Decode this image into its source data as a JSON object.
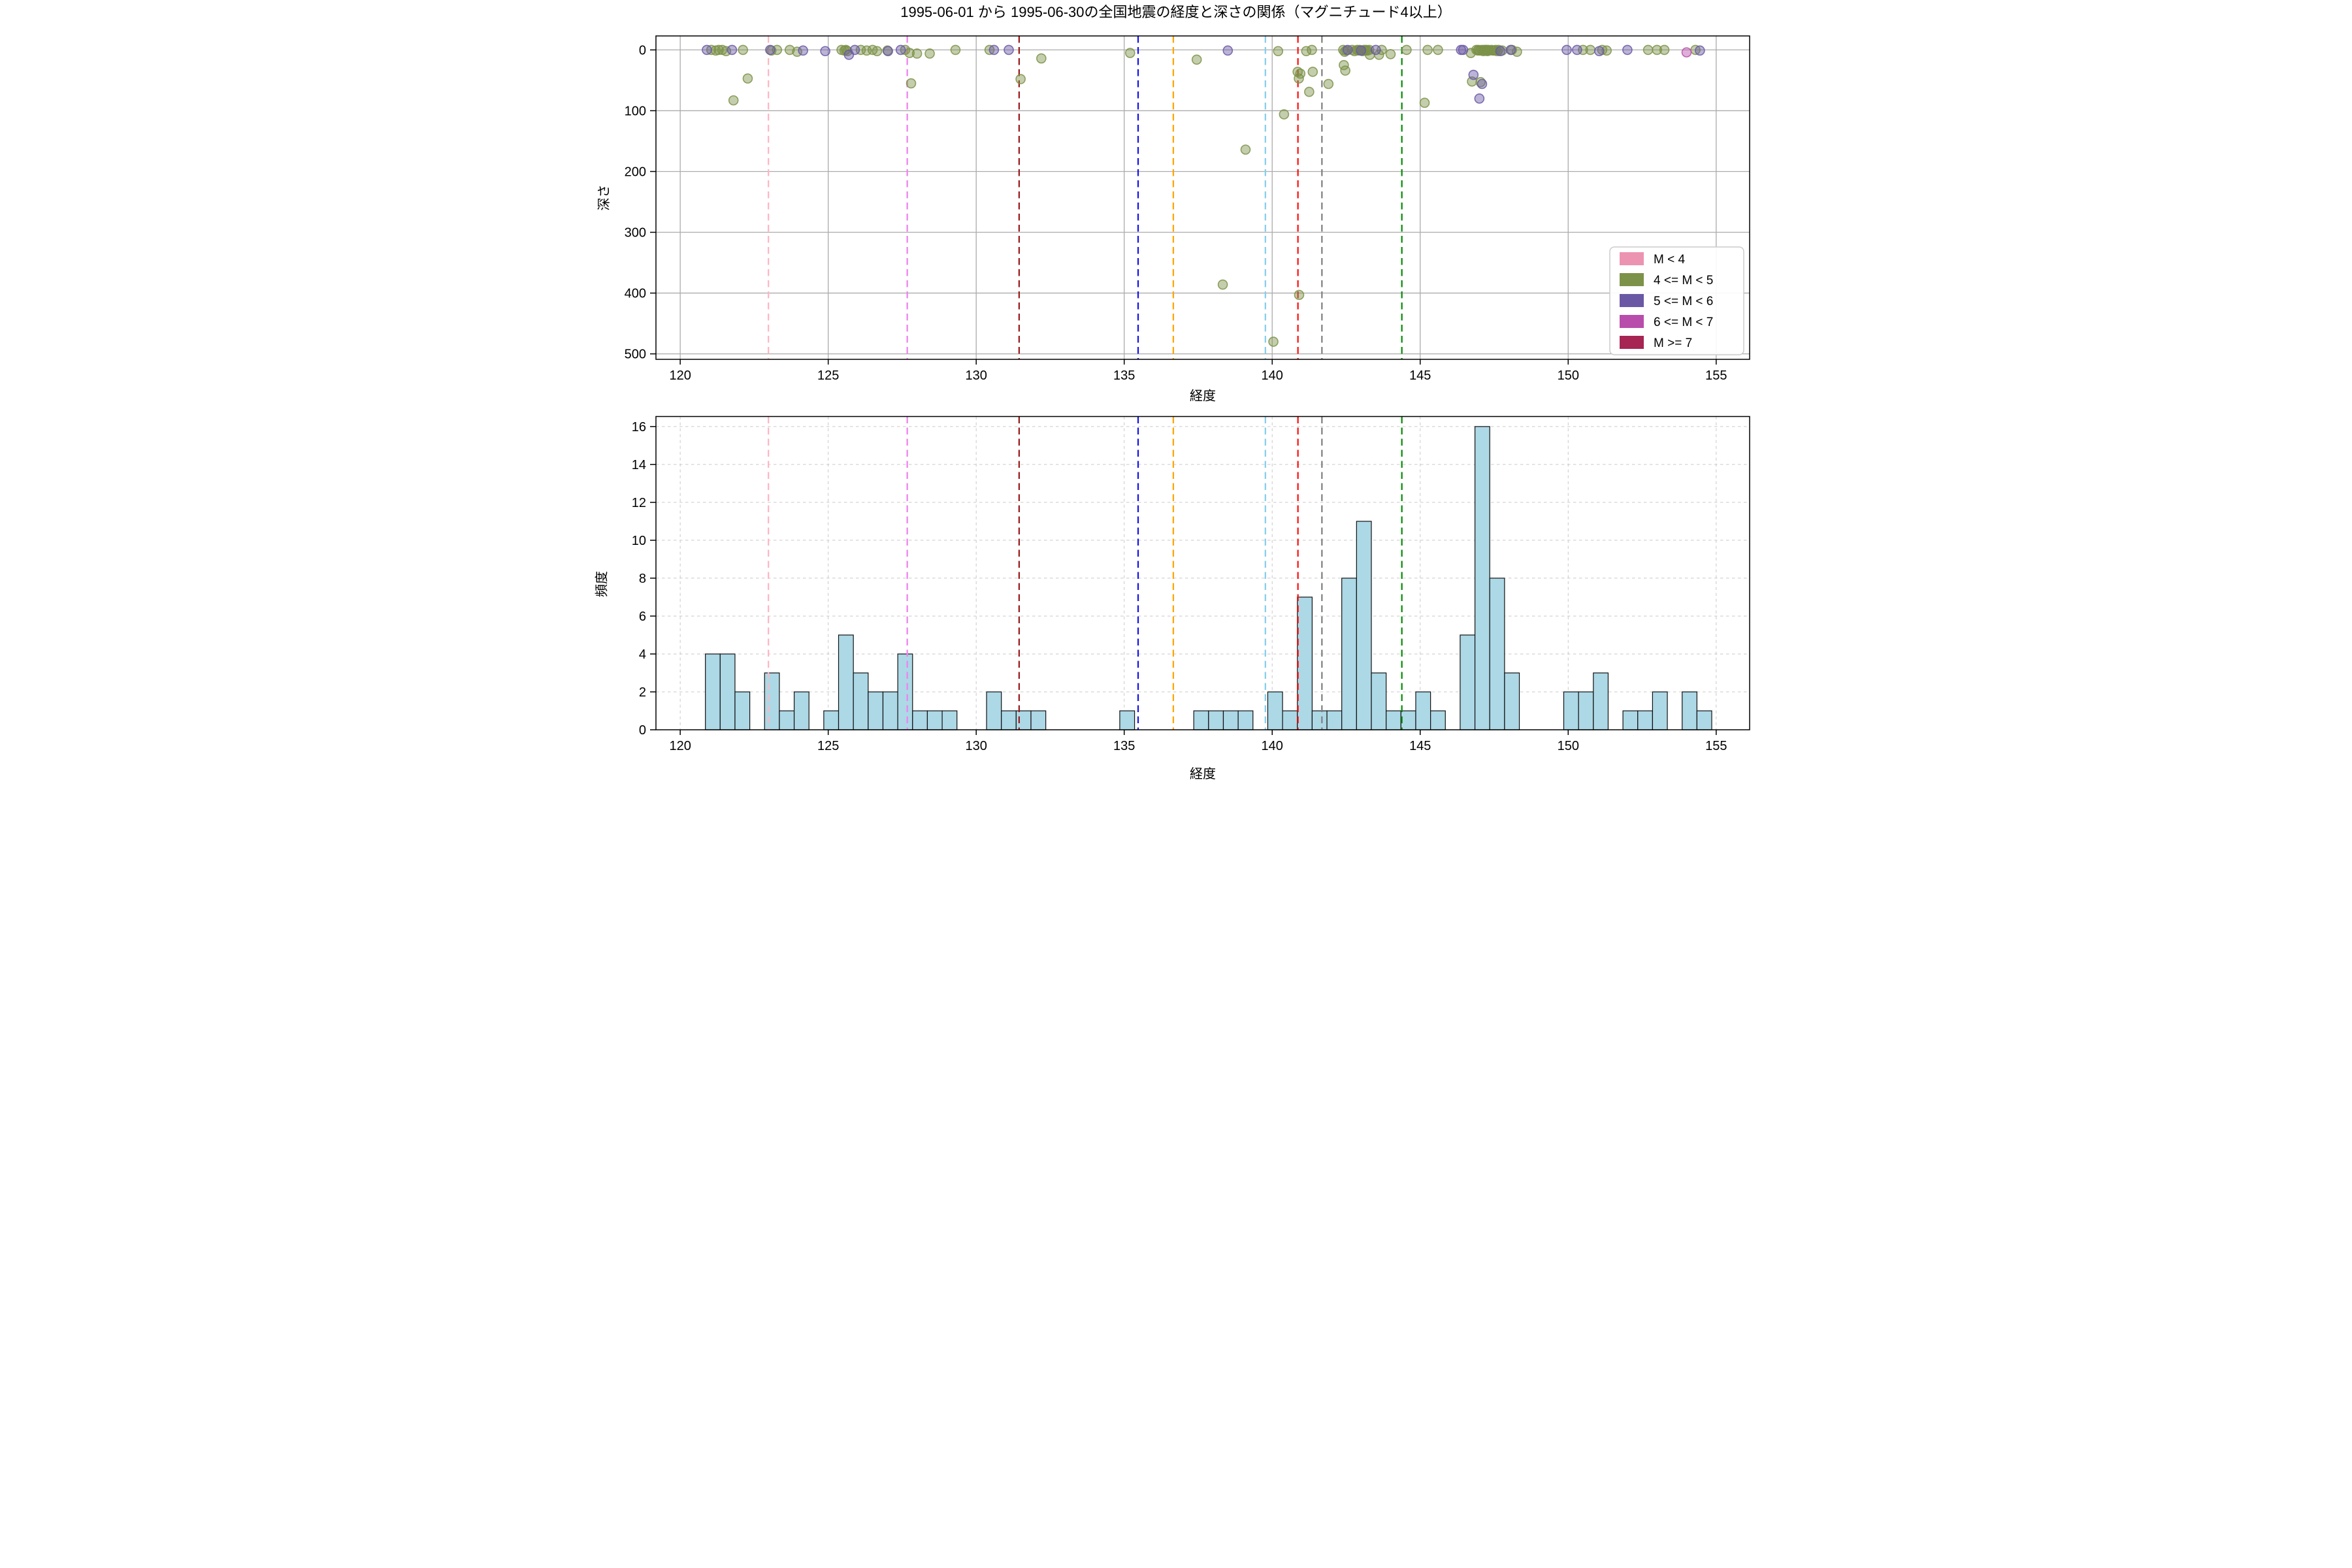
{
  "title": "1995-06-01 から 1995-06-30の全国地震の経度と深さの関係（マグニチュード4以上）",
  "axes": {
    "top": {
      "xlabel": "経度",
      "ylabel": "深さ",
      "xticks": [
        120,
        125,
        130,
        135,
        140,
        145,
        150,
        155
      ],
      "yticks": [
        0,
        100,
        200,
        300,
        400,
        500
      ],
      "xlim": [
        119.18,
        156.13
      ],
      "ylim_depth": [
        -23,
        509
      ],
      "grid": "solid"
    },
    "bottom": {
      "xlabel": "経度",
      "ylabel": "頻度",
      "xticks": [
        120,
        125,
        130,
        135,
        140,
        145,
        150,
        155
      ],
      "yticks": [
        0,
        2,
        4,
        6,
        8,
        10,
        12,
        14,
        16
      ],
      "xlim": [
        119.18,
        156.13
      ],
      "ylim": [
        0,
        16.53
      ],
      "grid": "dashed"
    }
  },
  "legend": {
    "position": "lower right of top plot",
    "items": [
      {
        "label": "M < 4",
        "color": "#EC93B2"
      },
      {
        "label": "4 <= M < 5",
        "color": "#7D9249"
      },
      {
        "label": "5 <= M < 6",
        "color": "#6A58A5"
      },
      {
        "label": "6 <= M < 7",
        "color": "#B94DAB"
      },
      {
        "label": "M >= 7",
        "color": "#A62552"
      }
    ]
  },
  "reference_lines": [
    {
      "x": 122.98,
      "color": "#FFB6C1"
    },
    {
      "x": 127.67,
      "color": "#EE82EE"
    },
    {
      "x": 131.45,
      "color": "#9B1B1B"
    },
    {
      "x": 135.47,
      "color": "#1414E8"
    },
    {
      "x": 136.66,
      "color": "#FFA500"
    },
    {
      "x": 139.77,
      "color": "#87CEEB"
    },
    {
      "x": 140.87,
      "color": "#FF1010"
    },
    {
      "x": 141.68,
      "color": "#808080"
    },
    {
      "x": 144.38,
      "color": "#0A8A0A"
    }
  ],
  "chart_data": [
    {
      "type": "scatter",
      "title": "経度と深さの関係",
      "xlabel": "経度",
      "ylabel": "深さ",
      "xlim": [
        119.18,
        156.13
      ],
      "ylim": [
        -23,
        509
      ],
      "y_inverted": true,
      "marker_alpha": 0.45,
      "series": [
        {
          "name": "4 <= M < 5",
          "color": "#7D9249",
          "points": [
            [
              121.05,
              0
            ],
            [
              121.2,
              1
            ],
            [
              121.3,
              0
            ],
            [
              121.42,
              0
            ],
            [
              121.55,
              2
            ],
            [
              121.8,
              83
            ],
            [
              122.12,
              0
            ],
            [
              122.28,
              47
            ],
            [
              123.08,
              1
            ],
            [
              123.27,
              0
            ],
            [
              123.7,
              0
            ],
            [
              123.95,
              3
            ],
            [
              125.45,
              0
            ],
            [
              125.55,
              1
            ],
            [
              125.6,
              0
            ],
            [
              125.65,
              2
            ],
            [
              126.1,
              0
            ],
            [
              126.3,
              1
            ],
            [
              126.5,
              0
            ],
            [
              126.65,
              2
            ],
            [
              127.0,
              1
            ],
            [
              127.6,
              0
            ],
            [
              127.75,
              5
            ],
            [
              127.8,
              55
            ],
            [
              128.0,
              6
            ],
            [
              128.43,
              6
            ],
            [
              129.3,
              0
            ],
            [
              130.45,
              0
            ],
            [
              131.5,
              48
            ],
            [
              132.2,
              14
            ],
            [
              135.2,
              5
            ],
            [
              137.45,
              16
            ],
            [
              138.33,
              386
            ],
            [
              139.1,
              164
            ],
            [
              140.2,
              2
            ],
            [
              140.04,
              480
            ],
            [
              140.4,
              106
            ],
            [
              140.86,
              36
            ],
            [
              140.9,
              47
            ],
            [
              140.95,
              39
            ],
            [
              140.91,
              403
            ],
            [
              141.15,
              2
            ],
            [
              141.34,
              0
            ],
            [
              141.25,
              69
            ],
            [
              141.37,
              36
            ],
            [
              141.9,
              56
            ],
            [
              142.4,
              0
            ],
            [
              142.45,
              3
            ],
            [
              142.5,
              1
            ],
            [
              142.42,
              25
            ],
            [
              142.47,
              34
            ],
            [
              142.7,
              0
            ],
            [
              142.78,
              2
            ],
            [
              142.87,
              0
            ],
            [
              142.9,
              1
            ],
            [
              142.95,
              0
            ],
            [
              143.05,
              2
            ],
            [
              143.1,
              0
            ],
            [
              143.15,
              1
            ],
            [
              143.18,
              0
            ],
            [
              143.22,
              1
            ],
            [
              143.28,
              0
            ],
            [
              143.3,
              8
            ],
            [
              143.61,
              8
            ],
            [
              143.7,
              0
            ],
            [
              144.0,
              7
            ],
            [
              144.54,
              0
            ],
            [
              145.15,
              87
            ],
            [
              145.25,
              0
            ],
            [
              145.6,
              0
            ],
            [
              146.71,
              5
            ],
            [
              146.75,
              52
            ],
            [
              146.9,
              0
            ],
            [
              146.95,
              1
            ],
            [
              146.97,
              0
            ],
            [
              147.02,
              1
            ],
            [
              147.04,
              53
            ],
            [
              147.08,
              0
            ],
            [
              147.13,
              2
            ],
            [
              147.16,
              0
            ],
            [
              147.19,
              1
            ],
            [
              147.21,
              0
            ],
            [
              147.24,
              0
            ],
            [
              147.27,
              2
            ],
            [
              147.3,
              0
            ],
            [
              147.33,
              1
            ],
            [
              147.41,
              0
            ],
            [
              147.45,
              1
            ],
            [
              147.5,
              1
            ],
            [
              147.55,
              0
            ],
            [
              147.6,
              2
            ],
            [
              147.65,
              0
            ],
            [
              147.77,
              1
            ],
            [
              148.1,
              0
            ],
            [
              148.27,
              3
            ],
            [
              150.5,
              0
            ],
            [
              150.75,
              0
            ],
            [
              151.15,
              0
            ],
            [
              151.3,
              1
            ],
            [
              152.7,
              0
            ],
            [
              153.0,
              0
            ],
            [
              153.25,
              0
            ],
            [
              154.3,
              0
            ]
          ]
        },
        {
          "name": "5 <= M < 6",
          "color": "#6A58A5",
          "points": [
            [
              120.9,
              0
            ],
            [
              121.75,
              0
            ],
            [
              123.04,
              0
            ],
            [
              124.15,
              1
            ],
            [
              124.9,
              2
            ],
            [
              125.7,
              8
            ],
            [
              125.9,
              0
            ],
            [
              127.02,
              2
            ],
            [
              127.45,
              0
            ],
            [
              130.6,
              0
            ],
            [
              131.1,
              0
            ],
            [
              138.5,
              1
            ],
            [
              142.55,
              0
            ],
            [
              143.0,
              1
            ],
            [
              143.5,
              0
            ],
            [
              146.38,
              0
            ],
            [
              146.45,
              0
            ],
            [
              146.8,
              41
            ],
            [
              147.0,
              80
            ],
            [
              147.09,
              56
            ],
            [
              147.71,
              2
            ],
            [
              148.06,
              0
            ],
            [
              149.95,
              0
            ],
            [
              150.3,
              0
            ],
            [
              151.05,
              2
            ],
            [
              152.0,
              0
            ],
            [
              154.45,
              1
            ]
          ]
        },
        {
          "name": "6 <= M < 7",
          "color": "#B94DAB",
          "points": [
            [
              154.0,
              4
            ]
          ]
        }
      ]
    },
    {
      "type": "bar",
      "title": "経度の頻度ヒストグラム",
      "xlabel": "経度",
      "ylabel": "頻度",
      "bar_color": "#ADD8E6",
      "bar_edge": "#111111",
      "bin_start": 120.85,
      "bin_width": 0.5,
      "counts": [
        4,
        4,
        2,
        0,
        3,
        1,
        2,
        0,
        1,
        5,
        3,
        2,
        2,
        4,
        1,
        1,
        1,
        0,
        0,
        2,
        1,
        1,
        1,
        0,
        0,
        0,
        0,
        0,
        1,
        0,
        0,
        0,
        0,
        1,
        1,
        1,
        1,
        0,
        2,
        1,
        7,
        1,
        1,
        8,
        11,
        3,
        1,
        1,
        2,
        1,
        0,
        5,
        16,
        8,
        3,
        0,
        0,
        0,
        2,
        2,
        3,
        0,
        1,
        1,
        2,
        0,
        2,
        1
      ],
      "ylim": [
        0,
        16.53
      ]
    }
  ]
}
